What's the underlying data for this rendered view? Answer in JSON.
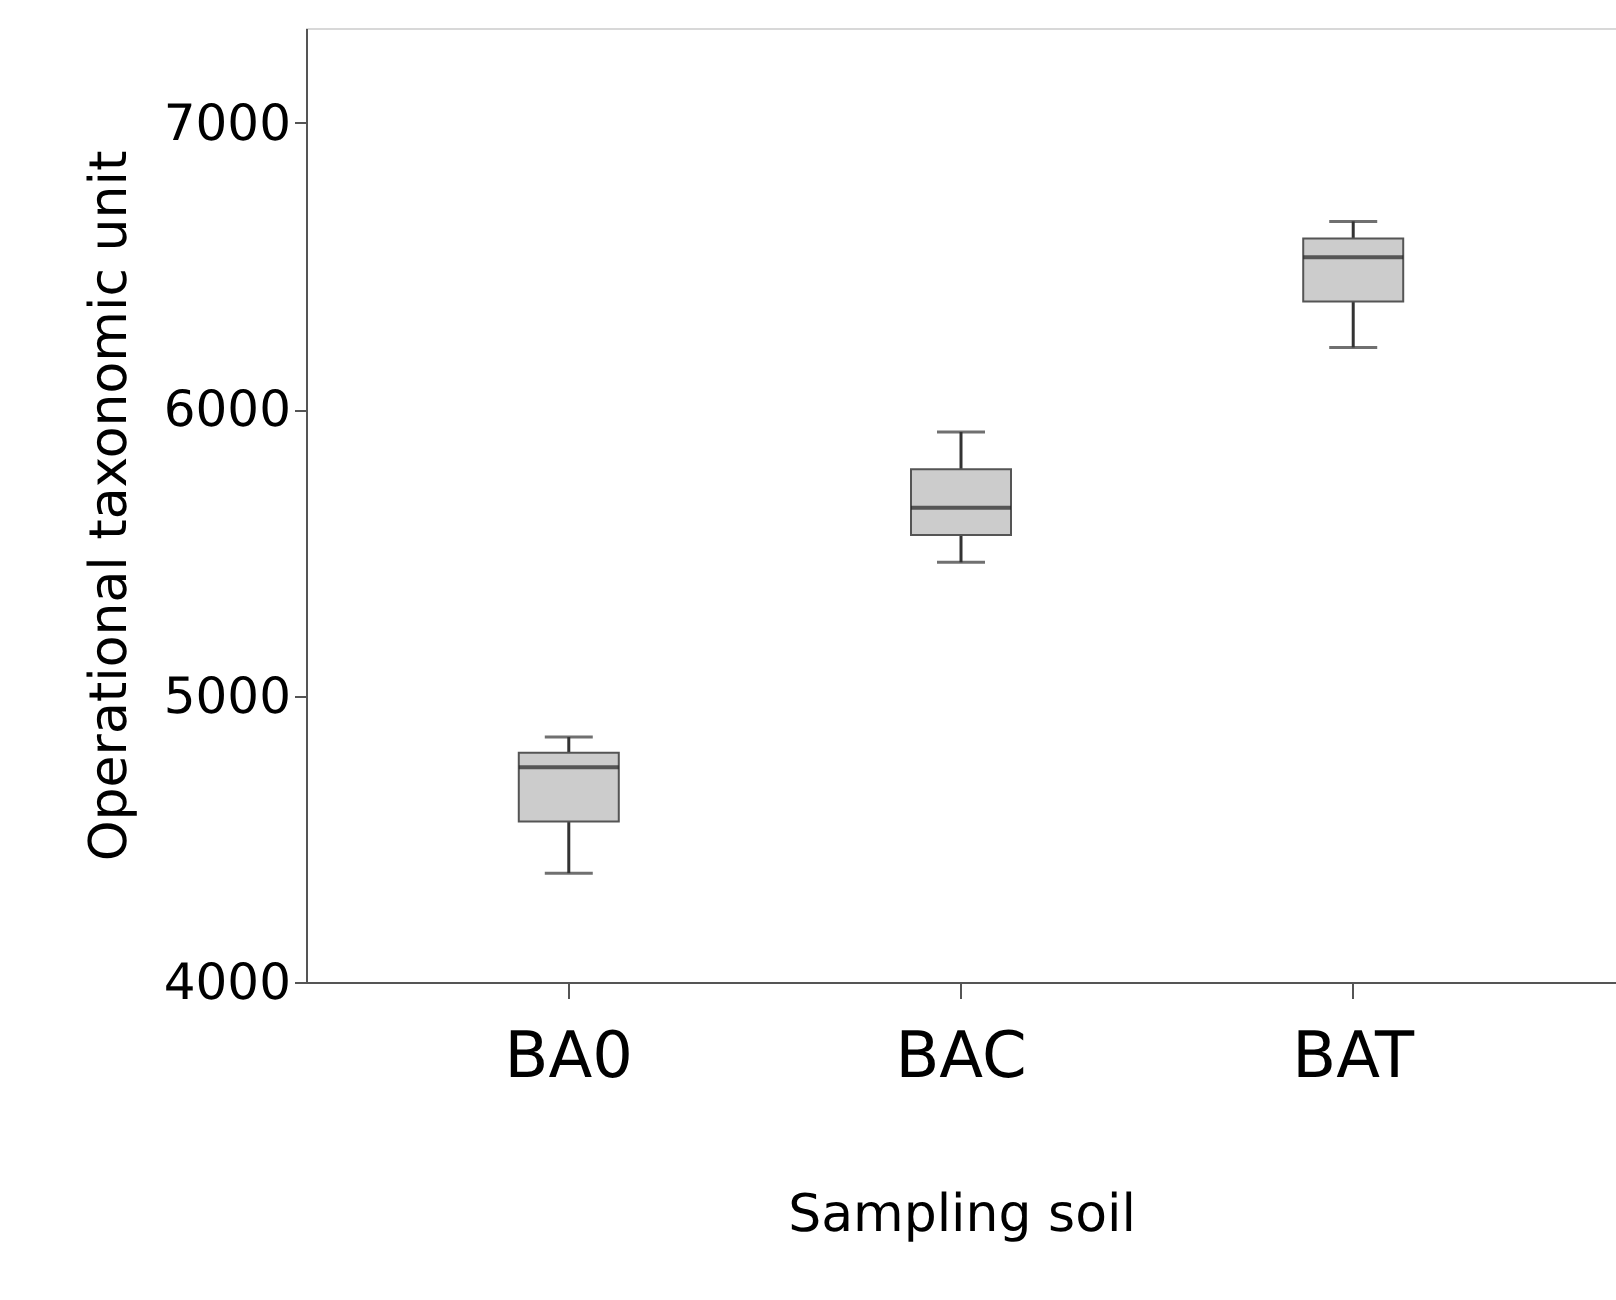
{
  "chart_data": {
    "type": "box",
    "xlabel": "Sampling soil",
    "ylabel": "Operational taxonomic unit",
    "categories": [
      "BA0",
      "BAC",
      "BAT"
    ],
    "series": [
      {
        "color": "#cccccc",
        "boxes": [
          {
            "low": 4380,
            "q1": 4560,
            "median": 4750,
            "q3": 4800,
            "high": 4855
          },
          {
            "low": 5465,
            "q1": 5560,
            "median": 5655,
            "q3": 5790,
            "high": 5920
          },
          {
            "low": 6215,
            "q1": 6375,
            "median": 6530,
            "q3": 6595,
            "high": 6655
          }
        ]
      }
    ],
    "ylim": [
      4000,
      7330
    ],
    "yticks": [
      4000,
      5000,
      6000,
      7000
    ]
  }
}
